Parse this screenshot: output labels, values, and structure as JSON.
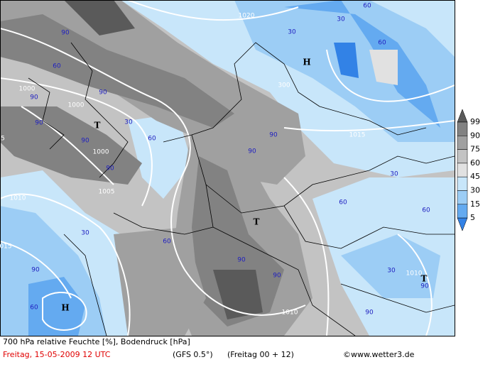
{
  "map": {
    "labels": [
      "1020",
      "30",
      "60",
      "30",
      "90",
      "60",
      "1000",
      "90",
      "1000",
      "90",
      "T",
      "90",
      "30",
      "60",
      "90",
      "1000",
      "90",
      "1005",
      "1010",
      "90",
      "60",
      "H",
      "015",
      "30",
      "60",
      "T",
      "90",
      "90",
      "1010",
      "H",
      "300",
      "90",
      "90",
      "1015",
      "30",
      "60",
      "60",
      "30",
      "1010",
      "T",
      "90",
      "90",
      "60",
      "5"
    ]
  },
  "legend": {
    "levels": [
      99,
      90,
      75,
      60,
      45,
      30,
      15,
      5
    ],
    "colors": [
      "#5a5a5a",
      "#828282",
      "#a0a0a0",
      "#c3c3c3",
      "#e1e1e1",
      "#c8e6fa",
      "#9ccdf5",
      "#64aaf0",
      "#3282e6"
    ]
  },
  "footer": {
    "title": "700 hPa relative Feuchte [%], Bodendruck [hPa]",
    "date": "Freitag, 15-05-2009   12 UTC",
    "model": "(GFS 0.5°)",
    "run": "(Freitag 00 + 12)",
    "source": "©www.wetter3.de"
  }
}
